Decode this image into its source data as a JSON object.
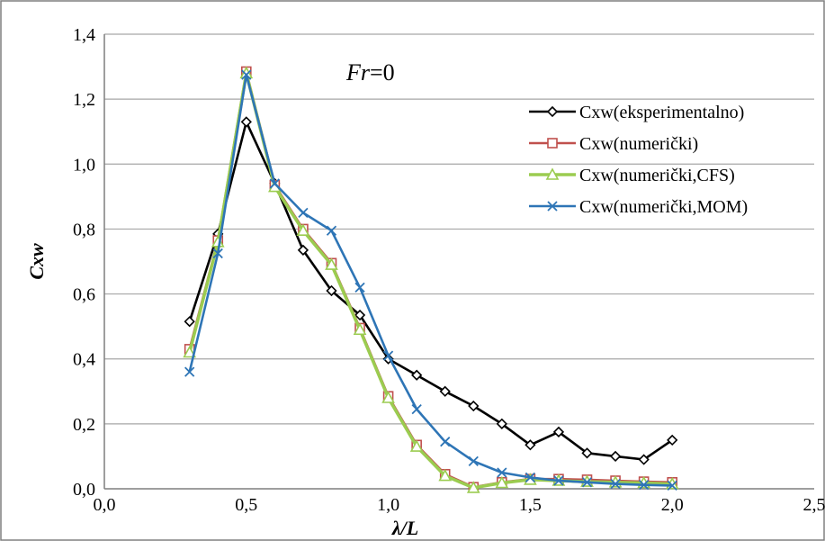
{
  "chart_data": {
    "type": "line",
    "title": "",
    "annotation": "Fr=0",
    "annotation_parts": {
      "italic": "Fr",
      "rest": "=0"
    },
    "xlabel": "λ/L",
    "ylabel": "Cxw",
    "xlim": [
      0.0,
      2.5
    ],
    "ylim": [
      0.0,
      1.4
    ],
    "x_ticks": [
      "0,0",
      "0,5",
      "1,0",
      "1,5",
      "2,0",
      "2,5"
    ],
    "y_ticks": [
      "0,0",
      "0,2",
      "0,4",
      "0,6",
      "0,8",
      "1,0",
      "1,2",
      "1,4"
    ],
    "grid": "horizontal",
    "legend_position": "top-right",
    "series": [
      {
        "name": "Cxw(eksperimentalno)",
        "color": "#000000",
        "marker": "diamond",
        "x": [
          0.3,
          0.4,
          0.5,
          0.6,
          0.7,
          0.8,
          0.9,
          1.0,
          1.1,
          1.2,
          1.3,
          1.4,
          1.5,
          1.6,
          1.7,
          1.8,
          1.9,
          2.0
        ],
        "y": [
          0.515,
          0.785,
          1.13,
          0.94,
          0.735,
          0.61,
          0.535,
          0.4,
          0.35,
          0.3,
          0.255,
          0.2,
          0.135,
          0.175,
          0.11,
          0.1,
          0.09,
          0.15
        ]
      },
      {
        "name": "Cxw(numerički)",
        "color": "#c0504d",
        "marker": "square",
        "x": [
          0.3,
          0.4,
          0.5,
          0.6,
          0.7,
          0.8,
          0.9,
          1.0,
          1.1,
          1.2,
          1.3,
          1.4,
          1.5,
          1.6,
          1.7,
          1.8,
          1.9,
          2.0
        ],
        "y": [
          0.43,
          0.765,
          1.285,
          0.935,
          0.8,
          0.695,
          0.495,
          0.285,
          0.135,
          0.045,
          0.005,
          0.02,
          0.03,
          0.03,
          0.028,
          0.025,
          0.022,
          0.02
        ]
      },
      {
        "name": "Cxw(numerički,CFS)",
        "color": "#9bcc50",
        "marker": "triangle",
        "x": [
          0.3,
          0.4,
          0.5,
          0.6,
          0.7,
          0.8,
          0.9,
          1.0,
          1.1,
          1.2,
          1.3,
          1.4,
          1.5,
          1.6,
          1.7,
          1.8,
          1.9,
          2.0
        ],
        "y": [
          0.42,
          0.76,
          1.28,
          0.93,
          0.795,
          0.69,
          0.49,
          0.28,
          0.13,
          0.04,
          0.003,
          0.018,
          0.028,
          0.025,
          0.022,
          0.02,
          0.018,
          0.015
        ]
      },
      {
        "name": "Cxw(numerički,MOM)",
        "color": "#2e75b6",
        "marker": "x",
        "x": [
          0.3,
          0.4,
          0.5,
          0.6,
          0.7,
          0.8,
          0.9,
          1.0,
          1.1,
          1.2,
          1.3,
          1.4,
          1.5,
          1.6,
          1.7,
          1.8,
          1.9,
          2.0
        ],
        "y": [
          0.36,
          0.725,
          1.275,
          0.94,
          0.85,
          0.795,
          0.62,
          0.41,
          0.245,
          0.145,
          0.085,
          0.05,
          0.035,
          0.025,
          0.02,
          0.015,
          0.012,
          0.01
        ]
      }
    ]
  }
}
